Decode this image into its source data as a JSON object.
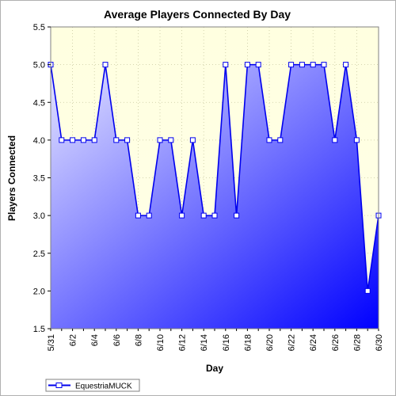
{
  "colors": {
    "plot_bg_top": "#ffffe0",
    "plot_bg_bottom": "#ffffe8",
    "area_light": "#e6e6ff",
    "area_dark": "#0000ff",
    "line": "#0000ee",
    "grid": "#c8c8a0"
  },
  "chart_data": {
    "type": "area",
    "title": "Average Players Connected By Day",
    "xlabel": "Day",
    "ylabel": "Players Connected",
    "ylim": [
      1.5,
      5.5
    ],
    "y_ticks": [
      "1.5",
      "2.0",
      "2.5",
      "3.0",
      "3.5",
      "4.0",
      "4.5",
      "5.0",
      "5.5"
    ],
    "x_tick_labels": [
      "5/31",
      "6/2",
      "6/4",
      "6/6",
      "6/8",
      "6/10",
      "6/12",
      "6/14",
      "6/16",
      "6/18",
      "6/20",
      "6/22",
      "6/24",
      "6/26",
      "6/28",
      "6/30"
    ],
    "grid": true,
    "legend_position": "bottom-left",
    "series": [
      {
        "name": "EquestriaMUCK",
        "x": [
          "5/31",
          "6/1",
          "6/2",
          "6/3",
          "6/4",
          "6/5",
          "6/6",
          "6/7",
          "6/8",
          "6/9",
          "6/10",
          "6/11",
          "6/12",
          "6/13",
          "6/14",
          "6/15",
          "6/16",
          "6/17",
          "6/18",
          "6/19",
          "6/20",
          "6/21",
          "6/22",
          "6/23",
          "6/24",
          "6/25",
          "6/26",
          "6/27",
          "6/28",
          "6/29",
          "6/30"
        ],
        "values": [
          5.0,
          4.0,
          4.0,
          4.0,
          4.0,
          5.0,
          4.0,
          4.0,
          3.0,
          3.0,
          4.0,
          4.0,
          3.0,
          4.0,
          3.0,
          3.0,
          5.0,
          3.0,
          5.0,
          5.0,
          4.0,
          4.0,
          5.0,
          5.0,
          5.0,
          5.0,
          4.0,
          5.0,
          4.0,
          2.0,
          3.0
        ]
      }
    ]
  }
}
